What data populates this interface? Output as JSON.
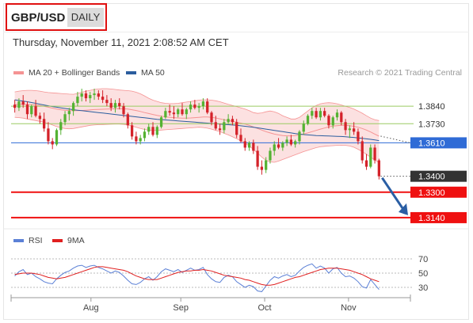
{
  "header": {
    "pair": "GBP/USD",
    "period": "DAILY",
    "datetime": "Thursday, November 11, 2021 2:08:52 AM CET"
  },
  "legend": {
    "bollinger": "MA 20 + Bollinger Bands",
    "ma50": "MA 50",
    "rsi": "RSI",
    "ma9": "9MA",
    "credit": "Research © 2021 Trading Central"
  },
  "colors": {
    "bull": "#55b233",
    "bear": "#d4222a",
    "bollinger": "#f59393",
    "band_fill": "#fbdcdc",
    "ma50": "#2b5d9e",
    "pivot": "#2f6bd6",
    "resistance": "#9acb62",
    "support": "#ef1010",
    "current": "#333333",
    "rsi": "#5b80d6",
    "rsi_ma": "#e02020",
    "arrow": "#2a5ea4"
  },
  "chart_data": [
    {
      "type": "candlestick",
      "x_ticks": [
        "Aug",
        "Sep",
        "Oct",
        "Nov"
      ],
      "ylim": [
        1.308,
        1.399
      ],
      "levels": [
        {
          "label": "1.3840",
          "value": 1.384,
          "kind": "resistance"
        },
        {
          "label": "1.3730",
          "value": 1.373,
          "kind": "resistance"
        },
        {
          "label": "1.3610",
          "value": 1.361,
          "kind": "pivot"
        },
        {
          "label": "1.3400",
          "value": 1.34,
          "kind": "current"
        },
        {
          "label": "1.3300",
          "value": 1.33,
          "kind": "support"
        },
        {
          "label": "1.3140",
          "value": 1.314,
          "kind": "support"
        }
      ],
      "candles": [
        [
          1.385,
          1.388,
          1.38,
          1.383
        ],
        [
          1.383,
          1.389,
          1.381,
          1.387
        ],
        [
          1.387,
          1.391,
          1.383,
          1.385
        ],
        [
          1.385,
          1.387,
          1.376,
          1.379
        ],
        [
          1.379,
          1.385,
          1.377,
          1.384
        ],
        [
          1.384,
          1.388,
          1.377,
          1.378
        ],
        [
          1.378,
          1.38,
          1.373,
          1.376
        ],
        [
          1.376,
          1.38,
          1.368,
          1.37
        ],
        [
          1.37,
          1.374,
          1.36,
          1.362
        ],
        [
          1.362,
          1.364,
          1.357,
          1.36
        ],
        [
          1.36,
          1.37,
          1.359,
          1.369
        ],
        [
          1.369,
          1.376,
          1.366,
          1.374
        ],
        [
          1.374,
          1.381,
          1.372,
          1.379
        ],
        [
          1.379,
          1.383,
          1.375,
          1.381
        ],
        [
          1.381,
          1.387,
          1.378,
          1.386
        ],
        [
          1.386,
          1.393,
          1.384,
          1.39
        ],
        [
          1.39,
          1.395,
          1.387,
          1.392
        ],
        [
          1.392,
          1.394,
          1.387,
          1.389
        ],
        [
          1.389,
          1.393,
          1.386,
          1.391
        ],
        [
          1.391,
          1.395,
          1.388,
          1.392
        ],
        [
          1.392,
          1.394,
          1.388,
          1.39
        ],
        [
          1.39,
          1.394,
          1.386,
          1.388
        ],
        [
          1.388,
          1.391,
          1.384,
          1.386
        ],
        [
          1.386,
          1.389,
          1.381,
          1.383
        ],
        [
          1.383,
          1.388,
          1.38,
          1.386
        ],
        [
          1.386,
          1.389,
          1.382,
          1.384
        ],
        [
          1.384,
          1.386,
          1.377,
          1.379
        ],
        [
          1.379,
          1.38,
          1.37,
          1.372
        ],
        [
          1.372,
          1.374,
          1.363,
          1.365
        ],
        [
          1.365,
          1.368,
          1.36,
          1.362
        ],
        [
          1.362,
          1.366,
          1.36,
          1.364
        ],
        [
          1.364,
          1.37,
          1.362,
          1.368
        ],
        [
          1.368,
          1.373,
          1.366,
          1.371
        ],
        [
          1.371,
          1.374,
          1.365,
          1.366
        ],
        [
          1.366,
          1.372,
          1.364,
          1.371
        ],
        [
          1.371,
          1.378,
          1.37,
          1.377
        ],
        [
          1.377,
          1.383,
          1.376,
          1.381
        ],
        [
          1.381,
          1.385,
          1.378,
          1.38
        ],
        [
          1.38,
          1.384,
          1.376,
          1.379
        ],
        [
          1.379,
          1.383,
          1.377,
          1.382
        ],
        [
          1.382,
          1.386,
          1.378,
          1.379
        ],
        [
          1.379,
          1.383,
          1.376,
          1.382
        ],
        [
          1.382,
          1.387,
          1.38,
          1.385
        ],
        [
          1.385,
          1.388,
          1.382,
          1.383
        ],
        [
          1.383,
          1.386,
          1.38,
          1.384
        ],
        [
          1.384,
          1.389,
          1.382,
          1.387
        ],
        [
          1.387,
          1.389,
          1.379,
          1.38
        ],
        [
          1.38,
          1.381,
          1.372,
          1.374
        ],
        [
          1.374,
          1.378,
          1.369,
          1.37
        ],
        [
          1.37,
          1.373,
          1.366,
          1.369
        ],
        [
          1.369,
          1.376,
          1.367,
          1.374
        ],
        [
          1.374,
          1.379,
          1.373,
          1.376
        ],
        [
          1.376,
          1.378,
          1.372,
          1.374
        ],
        [
          1.374,
          1.376,
          1.364,
          1.366
        ],
        [
          1.366,
          1.37,
          1.361,
          1.362
        ],
        [
          1.362,
          1.364,
          1.356,
          1.358
        ],
        [
          1.358,
          1.362,
          1.356,
          1.361
        ],
        [
          1.361,
          1.363,
          1.354,
          1.356
        ],
        [
          1.356,
          1.359,
          1.344,
          1.346
        ],
        [
          1.346,
          1.35,
          1.341,
          1.344
        ],
        [
          1.344,
          1.352,
          1.342,
          1.35
        ],
        [
          1.35,
          1.358,
          1.348,
          1.356
        ],
        [
          1.356,
          1.362,
          1.353,
          1.36
        ],
        [
          1.36,
          1.364,
          1.357,
          1.358
        ],
        [
          1.358,
          1.362,
          1.356,
          1.361
        ],
        [
          1.361,
          1.365,
          1.359,
          1.363
        ],
        [
          1.363,
          1.366,
          1.359,
          1.36
        ],
        [
          1.36,
          1.363,
          1.358,
          1.362
        ],
        [
          1.362,
          1.369,
          1.36,
          1.368
        ],
        [
          1.368,
          1.375,
          1.366,
          1.373
        ],
        [
          1.373,
          1.379,
          1.372,
          1.378
        ],
        [
          1.378,
          1.383,
          1.376,
          1.381
        ],
        [
          1.381,
          1.383,
          1.376,
          1.377
        ],
        [
          1.377,
          1.383,
          1.375,
          1.381
        ],
        [
          1.381,
          1.383,
          1.377,
          1.378
        ],
        [
          1.378,
          1.379,
          1.37,
          1.372
        ],
        [
          1.372,
          1.378,
          1.37,
          1.377
        ],
        [
          1.377,
          1.382,
          1.375,
          1.38
        ],
        [
          1.38,
          1.381,
          1.372,
          1.374
        ],
        [
          1.374,
          1.376,
          1.366,
          1.369
        ],
        [
          1.369,
          1.372,
          1.364,
          1.37
        ],
        [
          1.37,
          1.374,
          1.366,
          1.368
        ],
        [
          1.368,
          1.37,
          1.36,
          1.362
        ],
        [
          1.362,
          1.365,
          1.348,
          1.35
        ],
        [
          1.35,
          1.354,
          1.344,
          1.346
        ],
        [
          1.346,
          1.36,
          1.345,
          1.358
        ],
        [
          1.358,
          1.36,
          1.348,
          1.35
        ],
        [
          1.35,
          1.351,
          1.338,
          1.34
        ]
      ],
      "ma50": [
        1.388,
        1.3876,
        1.3872,
        1.3868,
        1.3863,
        1.3858,
        1.3853,
        1.3848,
        1.3843,
        1.3838,
        1.3834,
        1.383,
        1.3826,
        1.3822,
        1.3818,
        1.3815,
        1.3812,
        1.3809,
        1.3806,
        1.3803,
        1.38,
        1.3797,
        1.3794,
        1.3791,
        1.3788,
        1.3785,
        1.3782,
        1.3779,
        1.3776,
        1.3773,
        1.377,
        1.3767,
        1.3764,
        1.3761,
        1.3758,
        1.3756,
        1.3754,
        1.3752,
        1.375,
        1.3748,
        1.3746,
        1.3744,
        1.3742,
        1.374,
        1.3738,
        1.3736,
        1.3734,
        1.3732,
        1.373,
        1.3728,
        1.3726,
        1.3724,
        1.3722,
        1.372,
        1.3717,
        1.3714,
        1.3711,
        1.3708,
        1.3704,
        1.37,
        1.3696,
        1.3692,
        1.3688,
        1.3684,
        1.368,
        1.3676,
        1.3672,
        1.3668,
        1.3665,
        1.3662,
        1.366,
        1.3658,
        1.3656,
        1.3655,
        1.3654,
        1.3653,
        1.3652,
        1.3651,
        1.365,
        1.3648,
        1.3646,
        1.3644,
        1.3641,
        1.3638,
        1.3635,
        1.3632,
        1.3628,
        1.3624
      ],
      "ma20": [
        1.385,
        1.3852,
        1.3853,
        1.3852,
        1.385,
        1.3848,
        1.3844,
        1.384,
        1.3834,
        1.3828,
        1.3822,
        1.3818,
        1.3815,
        1.3813,
        1.3812,
        1.3812,
        1.3813,
        1.3815,
        1.3817,
        1.3819,
        1.382,
        1.3821,
        1.3822,
        1.3823,
        1.3824,
        1.3825,
        1.3824,
        1.3822,
        1.3818,
        1.3813,
        1.3807,
        1.38,
        1.3794,
        1.3788,
        1.3782,
        1.3777,
        1.3773,
        1.377,
        1.3768,
        1.3766,
        1.3765,
        1.3765,
        1.3766,
        1.3768,
        1.377,
        1.3772,
        1.3772,
        1.377,
        1.3766,
        1.3761,
        1.3755,
        1.375,
        1.3745,
        1.374,
        1.3734,
        1.3728,
        1.372,
        1.371,
        1.37,
        1.369,
        1.368,
        1.3672,
        1.3665,
        1.366,
        1.3656,
        1.3654,
        1.3654,
        1.3656,
        1.366,
        1.3666,
        1.3672,
        1.368,
        1.3688,
        1.3696,
        1.3703,
        1.371,
        1.3715,
        1.3718,
        1.372,
        1.372,
        1.3718,
        1.3714,
        1.3708,
        1.37,
        1.369,
        1.3678,
        1.3665,
        1.3652
      ],
      "bb_upper": [
        1.393,
        1.3935,
        1.3938,
        1.394,
        1.394,
        1.3938,
        1.3935,
        1.393,
        1.3926,
        1.3924,
        1.3922,
        1.392,
        1.3918,
        1.3916,
        1.3915,
        1.392,
        1.3928,
        1.3935,
        1.394,
        1.3945,
        1.3948,
        1.395,
        1.395,
        1.3948,
        1.3945,
        1.3942,
        1.394,
        1.3938,
        1.3935,
        1.3928,
        1.3918,
        1.3905,
        1.389,
        1.3878,
        1.387,
        1.3862,
        1.3858,
        1.3856,
        1.3856,
        1.3858,
        1.3862,
        1.3866,
        1.387,
        1.3874,
        1.3878,
        1.388,
        1.388,
        1.3878,
        1.3874,
        1.3868,
        1.386,
        1.3852,
        1.3845,
        1.3838,
        1.383,
        1.3822,
        1.3812,
        1.38,
        1.3795,
        1.3798,
        1.3805,
        1.381,
        1.3805,
        1.3795,
        1.378,
        1.377,
        1.376,
        1.376,
        1.377,
        1.379,
        1.381,
        1.383,
        1.3845,
        1.3855,
        1.386,
        1.3862,
        1.386,
        1.3855,
        1.3848,
        1.384,
        1.3832,
        1.3822,
        1.381,
        1.3796,
        1.378,
        1.3765,
        1.3755,
        1.375
      ],
      "bb_lower": [
        1.377,
        1.3768,
        1.3765,
        1.376,
        1.3755,
        1.375,
        1.3745,
        1.374,
        1.3732,
        1.3722,
        1.3712,
        1.3705,
        1.37,
        1.3698,
        1.37,
        1.3705,
        1.371,
        1.3715,
        1.372,
        1.3722,
        1.3724,
        1.3725,
        1.3726,
        1.3727,
        1.3728,
        1.3728,
        1.3726,
        1.3722,
        1.3716,
        1.3708,
        1.37,
        1.3694,
        1.369,
        1.3688,
        1.3688,
        1.369,
        1.3692,
        1.3694,
        1.3696,
        1.3698,
        1.37,
        1.3702,
        1.3704,
        1.3706,
        1.3708,
        1.3706,
        1.3702,
        1.3696,
        1.3688,
        1.368,
        1.367,
        1.366,
        1.3648,
        1.3636,
        1.3622,
        1.3608,
        1.359,
        1.357,
        1.3545,
        1.352,
        1.35,
        1.349,
        1.3488,
        1.3495,
        1.3505,
        1.3515,
        1.3525,
        1.3535,
        1.3545,
        1.3555,
        1.3563,
        1.3572,
        1.358,
        1.3585,
        1.3588,
        1.359,
        1.3592,
        1.3594,
        1.3595,
        1.3594,
        1.359,
        1.3582,
        1.357,
        1.3555,
        1.3538,
        1.352,
        1.3502,
        1.3485
      ],
      "forecast_target": 1.314
    },
    {
      "type": "line",
      "ylim": [
        20,
        80
      ],
      "y_ticks": [
        70,
        50,
        30
      ],
      "series": [
        {
          "name": "RSI",
          "values": [
            46,
            52,
            55,
            48,
            50,
            45,
            42,
            38,
            36,
            35,
            42,
            47,
            51,
            53,
            57,
            60,
            61,
            58,
            60,
            61,
            58,
            56,
            53,
            50,
            53,
            51,
            46,
            40,
            35,
            34,
            37,
            42,
            45,
            40,
            45,
            52,
            56,
            54,
            52,
            55,
            51,
            54,
            57,
            54,
            55,
            58,
            48,
            42,
            38,
            37,
            44,
            47,
            45,
            38,
            34,
            30,
            33,
            31,
            25,
            24,
            32,
            40,
            45,
            43,
            46,
            48,
            45,
            47,
            53,
            58,
            61,
            63,
            57,
            60,
            57,
            50,
            56,
            58,
            50,
            45,
            46,
            43,
            38,
            31,
            29,
            41,
            34,
            27
          ]
        },
        {
          "name": "9MA",
          "values": [
            48,
            49,
            50,
            50,
            50,
            49,
            48,
            46,
            44,
            43,
            42,
            43,
            44,
            46,
            48,
            50,
            52,
            54,
            56,
            58,
            59,
            59,
            58,
            57,
            56,
            55,
            54,
            52,
            49,
            46,
            44,
            42,
            41,
            41,
            41,
            43,
            45,
            47,
            49,
            51,
            52,
            53,
            53,
            54,
            54,
            55,
            54,
            53,
            51,
            49,
            47,
            46,
            45,
            44,
            43,
            41,
            40,
            38,
            36,
            34,
            33,
            33,
            34,
            36,
            38,
            40,
            42,
            44,
            45,
            47,
            49,
            51,
            53,
            55,
            56,
            57,
            57,
            57,
            56,
            55,
            54,
            52,
            50,
            48,
            45,
            42,
            40,
            38
          ]
        }
      ]
    }
  ]
}
